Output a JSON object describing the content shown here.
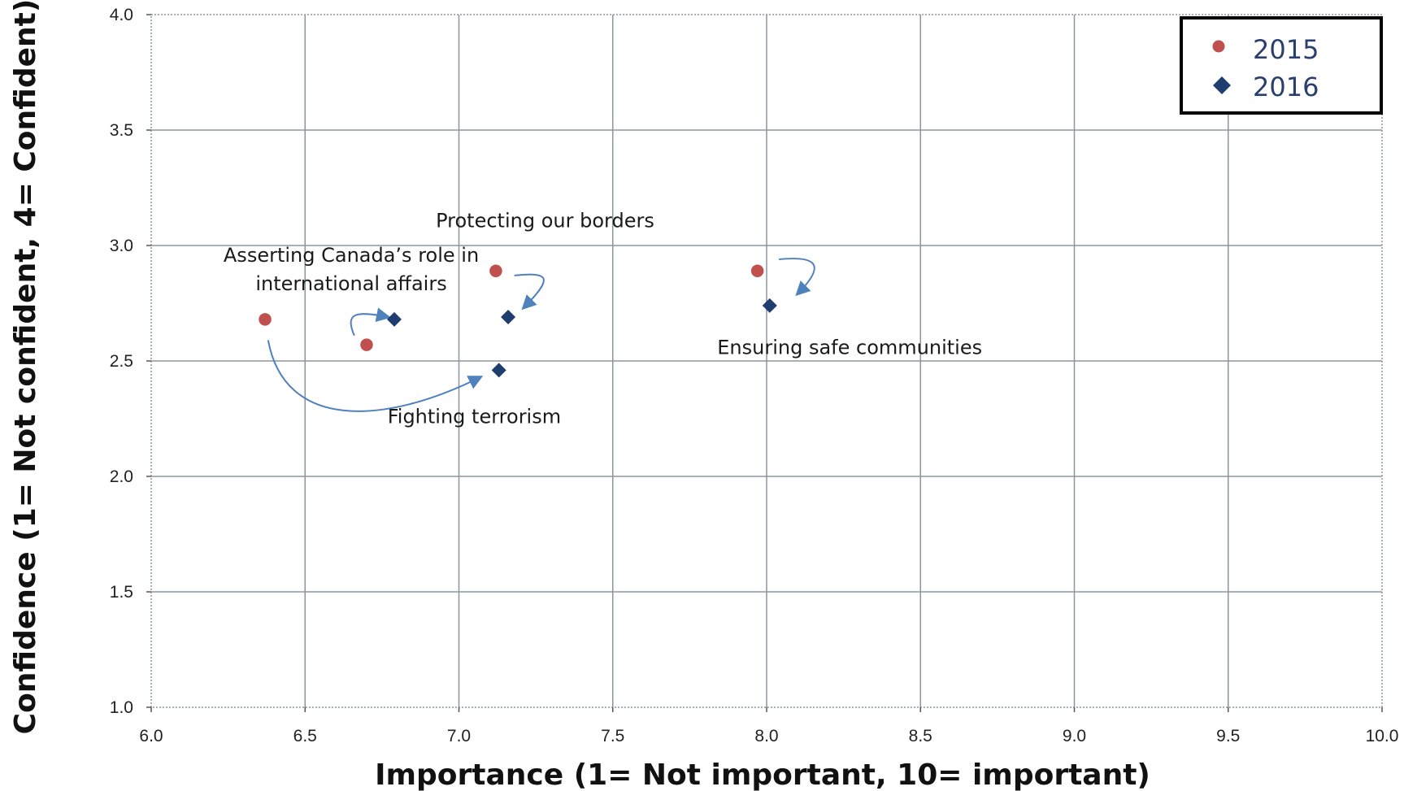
{
  "chart_data": {
    "type": "scatter",
    "title": "",
    "xlabel": "Importance (1= Not important, 10= important)",
    "ylabel": "Confidence (1= Not confident, 4= Confident)",
    "xlim": [
      6.0,
      10.0
    ],
    "ylim": [
      1.0,
      4.0
    ],
    "x_ticks": [
      "6.0",
      "6.5",
      "7.0",
      "7.5",
      "8.0",
      "8.5",
      "9.0",
      "9.5",
      "10.0"
    ],
    "y_ticks": [
      "1.0",
      "1.5",
      "2.0",
      "2.5",
      "3.0",
      "3.5",
      "4.0"
    ],
    "grid": true,
    "legend_position": "top-right",
    "series": [
      {
        "name": "2015",
        "marker": "circle",
        "color": "#c0504d",
        "points": [
          {
            "label": "Fighting terrorism",
            "x": 6.37,
            "y": 2.68
          },
          {
            "label": "Asserting Canada’s role in international affairs",
            "x": 6.7,
            "y": 2.57
          },
          {
            "label": "Protecting our borders",
            "x": 7.12,
            "y": 2.89
          },
          {
            "label": "Ensuring safe communities",
            "x": 7.97,
            "y": 2.89
          }
        ]
      },
      {
        "name": "2016",
        "marker": "diamond",
        "color": "#1f3d6e",
        "points": [
          {
            "label": "Asserting Canada’s role in international affairs",
            "x": 6.79,
            "y": 2.68
          },
          {
            "label": "Protecting our borders",
            "x": 7.16,
            "y": 2.69
          },
          {
            "label": "Fighting terrorism",
            "x": 7.13,
            "y": 2.46
          },
          {
            "label": "Ensuring safe communities",
            "x": 8.01,
            "y": 2.74
          }
        ]
      }
    ],
    "annotations": [
      {
        "lines": [
          "Protecting our borders"
        ],
        "x": 7.28,
        "y": 3.08
      },
      {
        "lines": [
          "Asserting Canada’s role in",
          "international affairs"
        ],
        "x": 6.65,
        "y": 2.93
      },
      {
        "lines": [
          "Ensuring safe communities"
        ],
        "x": 8.27,
        "y": 2.53
      },
      {
        "lines": [
          "Fighting terrorism"
        ],
        "x": 7.05,
        "y": 2.23
      }
    ],
    "arrows": [
      {
        "from": [
          6.38,
          2.59
        ],
        "to": [
          7.07,
          2.43
        ],
        "curve": "down"
      },
      {
        "from": [
          6.66,
          2.61
        ],
        "to": [
          6.77,
          2.69
        ],
        "curve": "up-left"
      },
      {
        "from": [
          7.18,
          2.87
        ],
        "to": [
          7.21,
          2.73
        ],
        "curve": "right"
      },
      {
        "from": [
          8.04,
          2.94
        ],
        "to": [
          8.1,
          2.79
        ],
        "curve": "right"
      }
    ],
    "colors": {
      "grid": "#8c96a0",
      "arrow": "#4f81bd",
      "circle_stroke": "#ffffff"
    }
  }
}
